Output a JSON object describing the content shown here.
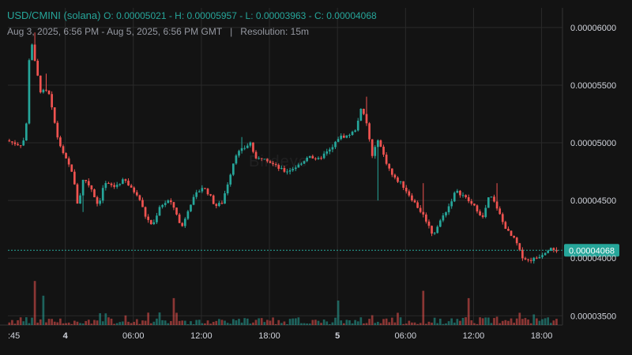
{
  "header": {
    "pair": "USD/CMINI (solana)",
    "ohlc": "O: 0.00005021 - H: 0.00005957 - L: 0.00003963 - C: 0.00004068",
    "range": "Aug 3, 2025, 6:56 PM - Aug 5, 2025, 6:56 PM GMT",
    "separator": "|",
    "resolution": "Resolution: 15m"
  },
  "watermark": "Birdeye",
  "colors": {
    "background": "#131313",
    "up": "#26a69a",
    "down": "#ef5350",
    "grid": "#2a2a2a",
    "price_label": "#26a69a"
  },
  "chart_data": {
    "type": "candlestick",
    "y_axis": {
      "ticks": [
        "0.00006000",
        "0.00005500",
        "0.00005000",
        "0.00004500",
        "0.00004000",
        "0.00003500"
      ],
      "tick_values": [
        6e-05,
        5.5e-05,
        5e-05,
        4.5e-05,
        4e-05,
        3.5e-05
      ],
      "range": [
        3.42e-05,
        6.17e-05
      ]
    },
    "x_axis": {
      "ticks": [
        ":45",
        "4",
        "06:00",
        "12:00",
        "18:00",
        "5",
        "06:00",
        "12:00",
        "18:00"
      ],
      "bold": [
        false,
        true,
        false,
        false,
        false,
        true,
        false,
        false,
        false
      ],
      "tick_hours": [
        -0.19,
        5.06,
        11.06,
        17.06,
        23.06,
        29.06,
        35.06,
        41.06,
        47.06
      ],
      "hours_range": [
        0,
        48.9
      ]
    },
    "last_price": {
      "value": 4.068e-05,
      "label": "0.00004068"
    },
    "ohlc_summary": {
      "open": 5.021e-05,
      "high": 5.957e-05,
      "low": 3.963e-05,
      "close": 4.068e-05
    },
    "path": [
      [
        0,
        5.021
      ],
      [
        0.6,
        5.0
      ],
      [
        1.2,
        4.98
      ],
      [
        1.7,
        5.05
      ],
      [
        2.1,
        5.95
      ],
      [
        2.5,
        5.7
      ],
      [
        3.0,
        5.45
      ],
      [
        3.7,
        5.44
      ],
      [
        4.5,
        5.05
      ],
      [
        5.0,
        4.9
      ],
      [
        5.8,
        4.75
      ],
      [
        6.3,
        4.45
      ],
      [
        6.8,
        4.7
      ],
      [
        7.5,
        4.6
      ],
      [
        8.1,
        4.45
      ],
      [
        8.6,
        4.65
      ],
      [
        9.5,
        4.62
      ],
      [
        10.4,
        4.68
      ],
      [
        11.0,
        4.6
      ],
      [
        11.6,
        4.55
      ],
      [
        12.3,
        4.35
      ],
      [
        12.9,
        4.28
      ],
      [
        13.5,
        4.45
      ],
      [
        14.3,
        4.5
      ],
      [
        14.9,
        4.42
      ],
      [
        15.4,
        4.25
      ],
      [
        16.1,
        4.45
      ],
      [
        16.7,
        4.55
      ],
      [
        17.3,
        4.62
      ],
      [
        17.9,
        4.55
      ],
      [
        18.4,
        4.45
      ],
      [
        19.0,
        4.48
      ],
      [
        19.6,
        4.68
      ],
      [
        20.2,
        4.9
      ],
      [
        20.9,
        4.95
      ],
      [
        21.5,
        5.0
      ],
      [
        22.0,
        4.85
      ],
      [
        22.7,
        4.88
      ],
      [
        23.4,
        4.82
      ],
      [
        24.0,
        4.78
      ],
      [
        24.6,
        4.75
      ],
      [
        25.3,
        4.78
      ],
      [
        26.0,
        4.82
      ],
      [
        26.7,
        4.9
      ],
      [
        27.3,
        4.84
      ],
      [
        28.0,
        4.9
      ],
      [
        28.7,
        4.95
      ],
      [
        29.3,
        5.05
      ],
      [
        30.0,
        5.06
      ],
      [
        30.7,
        5.1
      ],
      [
        31.3,
        5.3
      ],
      [
        31.8,
        5.15
      ],
      [
        32.3,
        4.85
      ],
      [
        32.7,
        5.05
      ],
      [
        33.4,
        4.85
      ],
      [
        34.1,
        4.7
      ],
      [
        34.8,
        4.65
      ],
      [
        35.5,
        4.55
      ],
      [
        36.2,
        4.45
      ],
      [
        36.9,
        4.35
      ],
      [
        37.6,
        4.2
      ],
      [
        38.4,
        4.35
      ],
      [
        39.0,
        4.45
      ],
      [
        39.6,
        4.58
      ],
      [
        40.2,
        4.55
      ],
      [
        40.9,
        4.48
      ],
      [
        41.5,
        4.42
      ],
      [
        42.0,
        4.35
      ],
      [
        42.6,
        4.55
      ],
      [
        43.2,
        4.45
      ],
      [
        43.8,
        4.3
      ],
      [
        44.4,
        4.2
      ],
      [
        44.9,
        4.15
      ],
      [
        45.4,
        4.02
      ],
      [
        46.0,
        3.98
      ],
      [
        46.7,
        4.0
      ],
      [
        47.3,
        4.04
      ],
      [
        48.0,
        4.1
      ],
      [
        48.5,
        4.068
      ]
    ],
    "spikes": [
      [
        2.2,
        5.957
      ],
      [
        3.2,
        5.6
      ],
      [
        6.4,
        4.4
      ],
      [
        20.5,
        5.05
      ],
      [
        31.5,
        5.4
      ],
      [
        32.4,
        4.5
      ],
      [
        36.5,
        4.65
      ],
      [
        43.0,
        4.65
      ],
      [
        45.9,
        3.963
      ]
    ],
    "volume_spikes": [
      [
        2.3,
        0.9
      ],
      [
        3.1,
        0.6
      ],
      [
        14.6,
        0.55
      ],
      [
        29.0,
        0.5
      ],
      [
        36.4,
        0.7
      ],
      [
        40.6,
        0.55
      ]
    ]
  }
}
